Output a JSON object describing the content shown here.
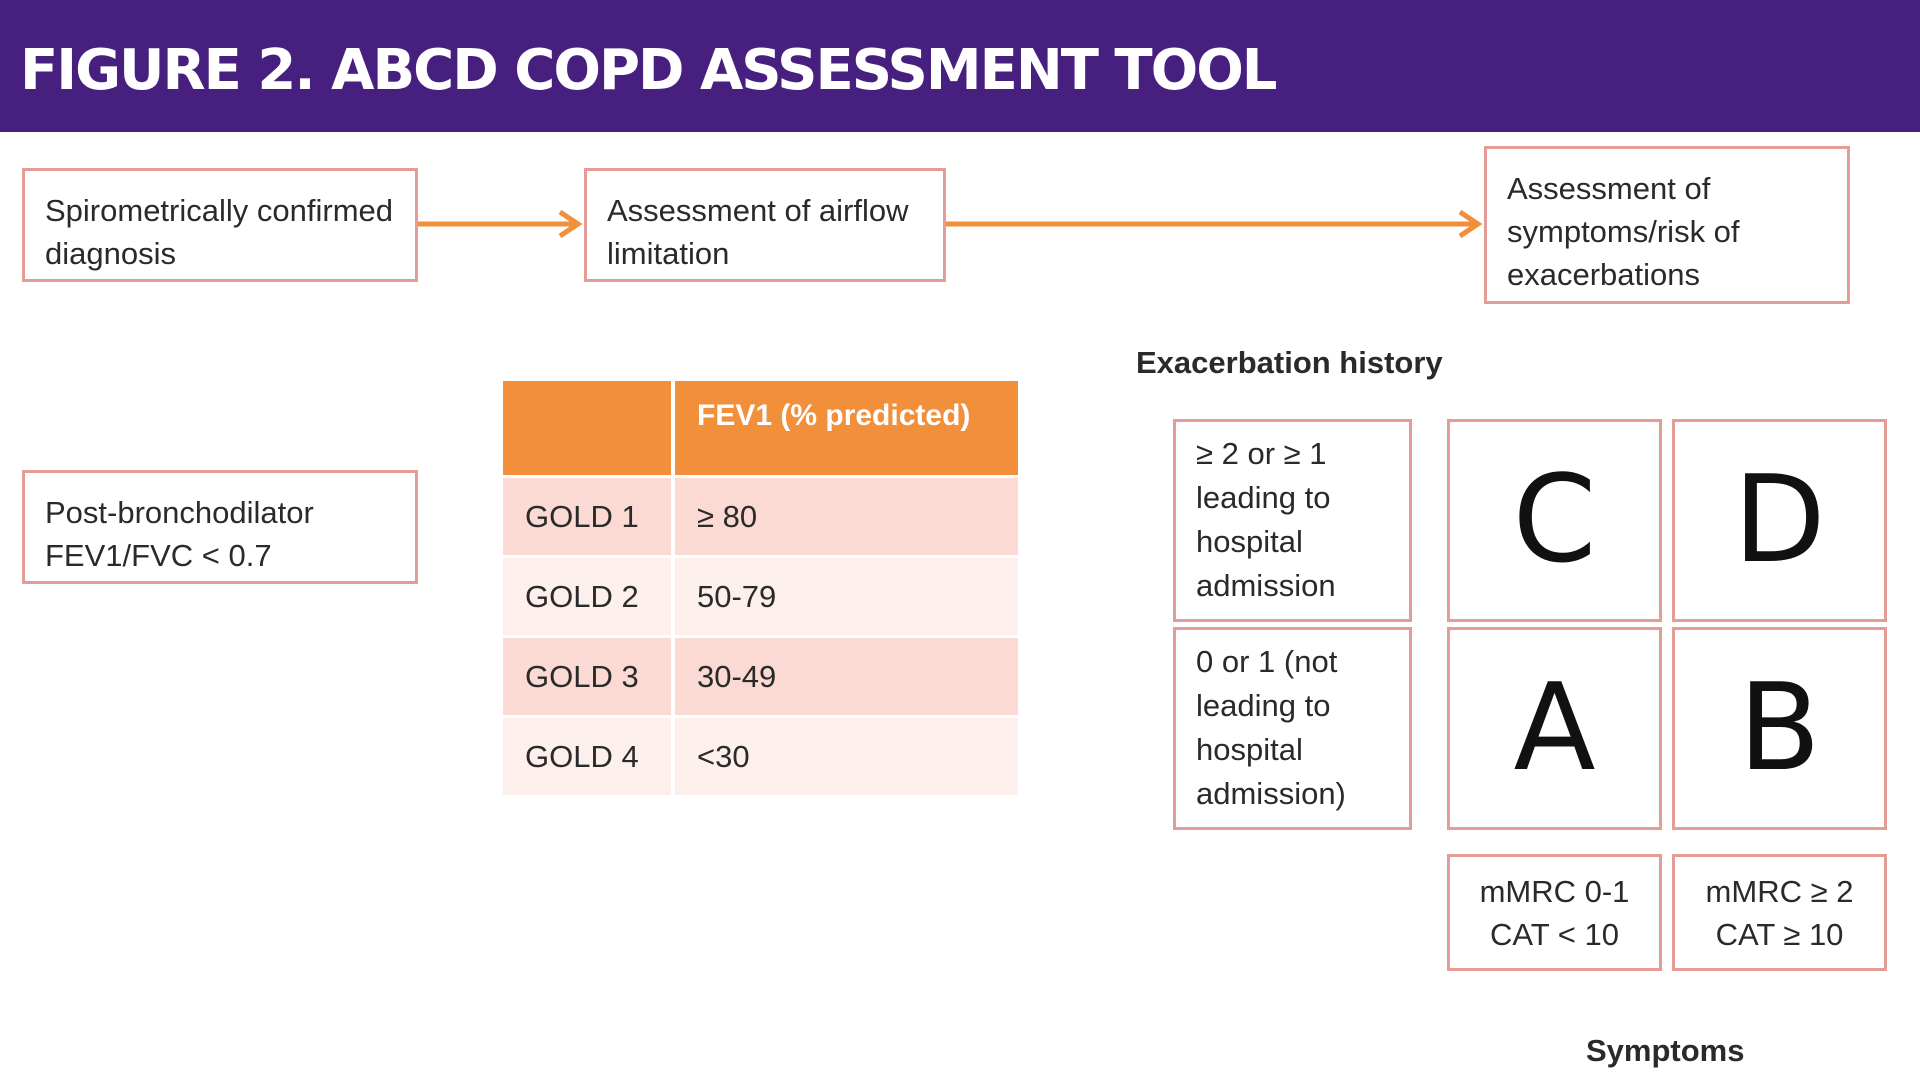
{
  "header": {
    "title": "FIGURE 2. ABCD COPD ASSESSMENT TOOL"
  },
  "flow": {
    "step1": "Spirometrically confirmed diagnosis",
    "step2": "Assessment of airflow limitation",
    "step3": "Assessment of symptoms/risk of exacerbations",
    "criterion": "Post-bronchodilator FEV1/FVC < 0.7"
  },
  "gold_table": {
    "header": "FEV1 (% predicted)",
    "rows": [
      {
        "grade": "GOLD 1",
        "fev1": "≥ 80"
      },
      {
        "grade": "GOLD 2",
        "fev1": "50-79"
      },
      {
        "grade": "GOLD 3",
        "fev1": "30-49"
      },
      {
        "grade": "GOLD 4",
        "fev1": "<30"
      }
    ]
  },
  "abcd": {
    "exacerbation_title": "Exacerbation history",
    "high_risk": "≥ 2 or ≥ 1 leading to hospital admission",
    "low_risk": "0 or 1 (not leading to hospital admission)",
    "letters": {
      "c": "C",
      "d": "D",
      "a": "A",
      "b": "B"
    },
    "symptoms_low": {
      "line1": "mMRC 0-1",
      "line2": "CAT < 10"
    },
    "symptoms_high": {
      "line1": "mMRC ≥ 2",
      "line2": "CAT ≥ 10"
    },
    "symptoms_title": "Symptoms"
  },
  "colors": {
    "header_bg": "#47207f",
    "box_border": "#e59c96",
    "arrow": "#f28f3b",
    "table_header": "#f28f3b",
    "row_odd": "#fadad2",
    "row_even": "#fdf0ec"
  }
}
